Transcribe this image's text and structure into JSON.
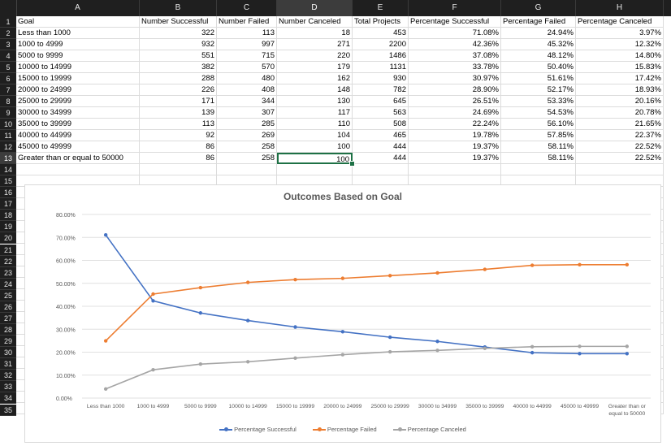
{
  "columns": [
    "A",
    "B",
    "C",
    "D",
    "E",
    "F",
    "G",
    "H"
  ],
  "rows_count": 35,
  "selected_cell": {
    "row": 13,
    "col": "D"
  },
  "table": {
    "headers": [
      "Goal",
      "Number Successful",
      "Number Failed",
      "Number Canceled",
      "Total Projects",
      "Percentage Successful",
      "Percentage Failed",
      "Percentage Canceled"
    ],
    "rows": [
      [
        "Less than 1000",
        "322",
        "113",
        "18",
        "453",
        "71.08%",
        "24.94%",
        "3.97%"
      ],
      [
        "1000 to 4999",
        "932",
        "997",
        "271",
        "2200",
        "42.36%",
        "45.32%",
        "12.32%"
      ],
      [
        "5000 to 9999",
        "551",
        "715",
        "220",
        "1486",
        "37.08%",
        "48.12%",
        "14.80%"
      ],
      [
        "10000 to 14999",
        "382",
        "570",
        "179",
        "1131",
        "33.78%",
        "50.40%",
        "15.83%"
      ],
      [
        "15000 to 19999",
        "288",
        "480",
        "162",
        "930",
        "30.97%",
        "51.61%",
        "17.42%"
      ],
      [
        "20000 to 24999",
        "226",
        "408",
        "148",
        "782",
        "28.90%",
        "52.17%",
        "18.93%"
      ],
      [
        "25000 to 29999",
        "171",
        "344",
        "130",
        "645",
        "26.51%",
        "53.33%",
        "20.16%"
      ],
      [
        "30000 to 34999",
        "139",
        "307",
        "117",
        "563",
        "24.69%",
        "54.53%",
        "20.78%"
      ],
      [
        "35000 to 39999",
        "113",
        "285",
        "110",
        "508",
        "22.24%",
        "56.10%",
        "21.65%"
      ],
      [
        "40000 to 44999",
        "92",
        "269",
        "104",
        "465",
        "19.78%",
        "57.85%",
        "22.37%"
      ],
      [
        "45000 to 49999",
        "86",
        "258",
        "100",
        "444",
        "19.37%",
        "58.11%",
        "22.52%"
      ],
      [
        "Greater than or equal to 50000",
        "86",
        "258",
        "100",
        "444",
        "19.37%",
        "58.11%",
        "22.52%"
      ]
    ]
  },
  "chart_data": {
    "type": "line",
    "title": "Outcomes Based on Goal",
    "categories": [
      "Less than 1000",
      "1000 to 4999",
      "5000 to 9999",
      "10000 to 14999",
      "15000 to 19999",
      "20000 to 24999",
      "25000 to 29999",
      "30000 to 34999",
      "35000 to 39999",
      "40000 to 44999",
      "45000 to 49999",
      "Greater than or equal to 50000"
    ],
    "ylim": [
      0,
      0.8
    ],
    "yticks": [
      "0.00%",
      "10.00%",
      "20.00%",
      "30.00%",
      "40.00%",
      "50.00%",
      "60.00%",
      "70.00%",
      "80.00%"
    ],
    "grid": true,
    "legend_position": "bottom",
    "series": [
      {
        "name": "Percentage Successful",
        "color": "#4472C4",
        "values": [
          0.7108,
          0.4236,
          0.3708,
          0.3378,
          0.3097,
          0.289,
          0.2651,
          0.2469,
          0.2224,
          0.1978,
          0.1937,
          0.1937
        ]
      },
      {
        "name": "Percentage Failed",
        "color": "#ED7D31",
        "values": [
          0.2494,
          0.4532,
          0.4812,
          0.504,
          0.5161,
          0.5217,
          0.5333,
          0.5453,
          0.561,
          0.5785,
          0.5811,
          0.5811
        ]
      },
      {
        "name": "Percentage Canceled",
        "color": "#A5A5A5",
        "values": [
          0.0397,
          0.1232,
          0.148,
          0.1583,
          0.1742,
          0.1893,
          0.2016,
          0.2078,
          0.2165,
          0.2237,
          0.2252,
          0.2252
        ]
      }
    ]
  }
}
